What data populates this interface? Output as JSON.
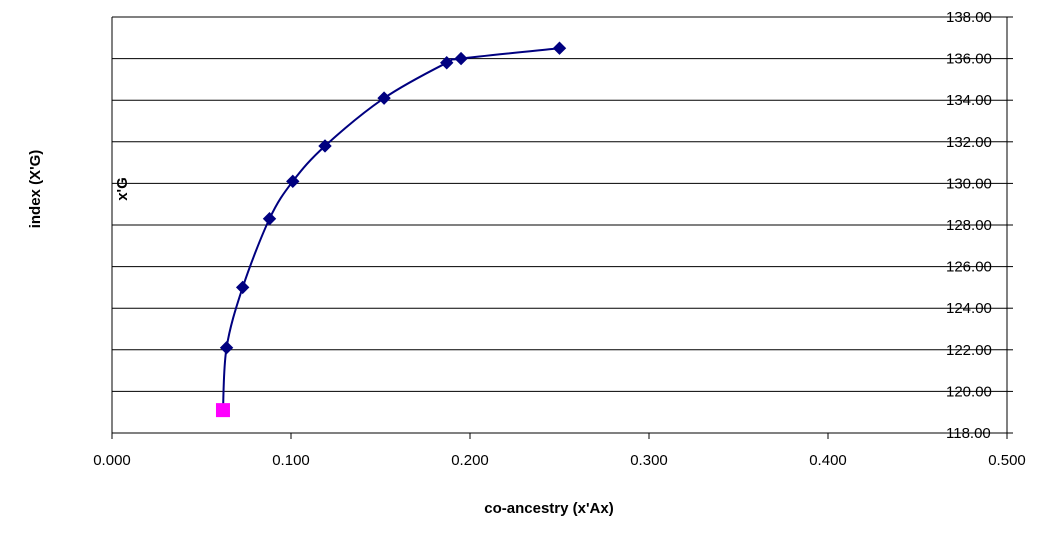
{
  "chart_data": {
    "type": "scatter",
    "title": "",
    "xlabel": "co-ancestry (x'Ax)",
    "ylabel": "index (X'G)",
    "inner_label": "x'G",
    "xlim": [
      0,
      0.5
    ],
    "ylim": [
      118,
      138
    ],
    "x_ticks": [
      "0.000",
      "0.100",
      "0.200",
      "0.300",
      "0.400",
      "0.500"
    ],
    "y_ticks": [
      "118.00",
      "120.00",
      "122.00",
      "124.00",
      "126.00",
      "128.00",
      "130.00",
      "132.00",
      "134.00",
      "136.00",
      "138.00"
    ],
    "grid": "horizontal",
    "legend": "none",
    "series": [
      {
        "marker": "diamond",
        "color": "#000080",
        "line": "smooth",
        "points": [
          {
            "x": 0.25,
            "y": 136.5
          },
          {
            "x": 0.195,
            "y": 136.0
          },
          {
            "x": 0.187,
            "y": 135.8
          },
          {
            "x": 0.152,
            "y": 134.1
          },
          {
            "x": 0.119,
            "y": 131.8
          },
          {
            "x": 0.101,
            "y": 130.1
          },
          {
            "x": 0.088,
            "y": 128.3
          },
          {
            "x": 0.073,
            "y": 125.0
          },
          {
            "x": 0.064,
            "y": 122.1
          }
        ]
      },
      {
        "marker": "square",
        "color": "#ff00ff",
        "line": "none",
        "points": [
          {
            "x": 0.062,
            "y": 119.1
          }
        ]
      }
    ]
  }
}
